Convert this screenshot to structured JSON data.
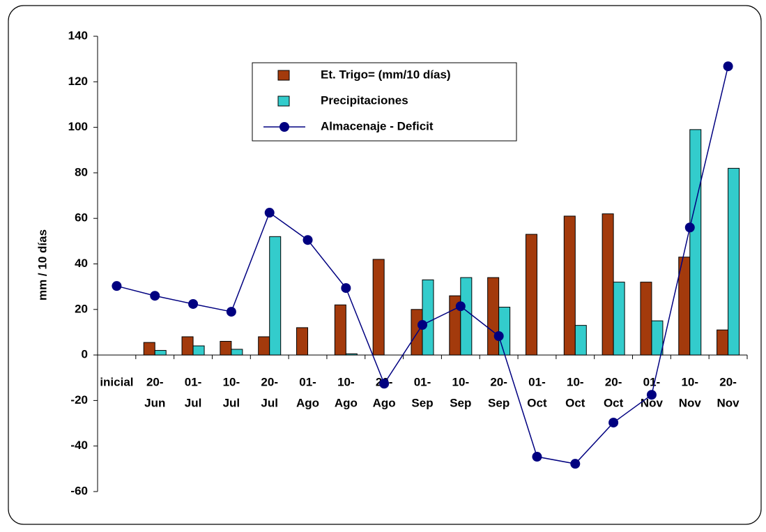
{
  "chart_data": {
    "type": "bar",
    "y_label": "mm / 10 días",
    "categories": [
      [
        "inicial"
      ],
      [
        "20-",
        "Jun"
      ],
      [
        "01-",
        "Jul"
      ],
      [
        "10-",
        "Jul"
      ],
      [
        "20-",
        "Jul"
      ],
      [
        "01-",
        "Ago"
      ],
      [
        "10-",
        "Ago"
      ],
      [
        "20-",
        "Ago"
      ],
      [
        "01-",
        "Sep"
      ],
      [
        "10-",
        "Sep"
      ],
      [
        "20-",
        "Sep"
      ],
      [
        "01-",
        "Oct"
      ],
      [
        "10-",
        "Oct"
      ],
      [
        "20-",
        "Oct"
      ],
      [
        "01-",
        "Nov"
      ],
      [
        "10-",
        "Nov"
      ],
      [
        "20-",
        "Nov"
      ]
    ],
    "series": [
      {
        "name": "Et. Trigo= (mm/10 días)",
        "type": "bar",
        "color": "#a33a0c",
        "values": [
          null,
          5.5,
          8,
          6,
          8,
          12,
          22,
          42,
          20,
          26,
          34,
          53,
          61,
          62,
          32,
          43,
          11
        ]
      },
      {
        "name": "Precipitaciones",
        "type": "bar",
        "color": "#33cccc",
        "values": [
          null,
          2,
          4,
          2.5,
          52,
          null,
          0.5,
          null,
          33,
          34,
          21,
          null,
          13,
          32,
          15,
          99,
          82
        ]
      },
      {
        "name": "Almacenaje - Deficit",
        "type": "line",
        "color": "#000080",
        "values": [
          30.3,
          26,
          22.4,
          19,
          62.5,
          50.5,
          29.4,
          -12.6,
          13.2,
          21.4,
          8.3,
          -44.7,
          -47.8,
          -29.7,
          -17.5,
          56,
          126.8
        ]
      }
    ],
    "ylim": [
      -60,
      140
    ],
    "yticks": [
      -60,
      -40,
      -20,
      0,
      20,
      40,
      60,
      80,
      100,
      120,
      140
    ]
  }
}
